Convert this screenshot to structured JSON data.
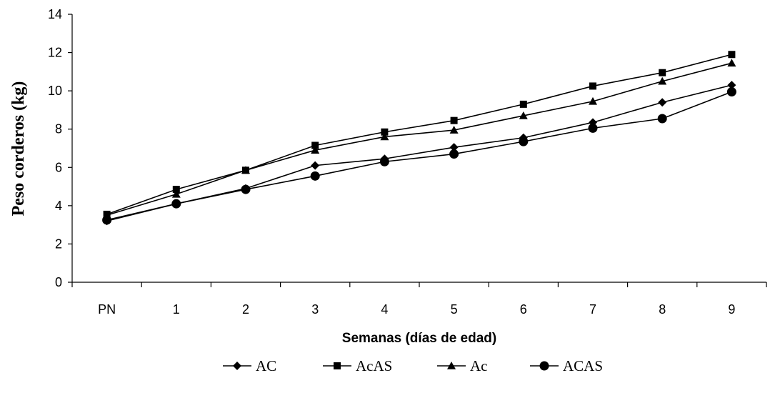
{
  "chart_data": {
    "type": "line",
    "title": "",
    "xlabel": "Semanas (días de edad)",
    "ylabel": "Peso corderos (kg)",
    "categories": [
      "PN",
      "1",
      "2",
      "3",
      "4",
      "5",
      "6",
      "7",
      "8",
      "9"
    ],
    "ylim": [
      0,
      14
    ],
    "yticks": [
      0,
      2,
      4,
      6,
      8,
      10,
      12,
      14
    ],
    "grid": false,
    "legend_position": "bottom",
    "series": [
      {
        "name": "AC",
        "marker": "diamond",
        "values": [
          3.2,
          4.1,
          4.9,
          6.1,
          6.45,
          7.05,
          7.55,
          8.35,
          9.4,
          10.3
        ]
      },
      {
        "name": "AcAS",
        "marker": "square",
        "values": [
          3.55,
          4.85,
          5.85,
          7.15,
          7.85,
          8.45,
          9.3,
          10.25,
          10.95,
          11.9
        ]
      },
      {
        "name": "Ac",
        "marker": "triangle",
        "values": [
          3.5,
          4.6,
          5.85,
          6.9,
          7.6,
          7.95,
          8.7,
          9.45,
          10.5,
          11.45
        ]
      },
      {
        "name": "ACAS",
        "marker": "circle",
        "values": [
          3.25,
          4.1,
          4.85,
          5.55,
          6.3,
          6.7,
          7.35,
          8.05,
          8.55,
          9.95
        ]
      }
    ],
    "colors": {
      "line": "#000000",
      "axis": "#000000"
    }
  }
}
